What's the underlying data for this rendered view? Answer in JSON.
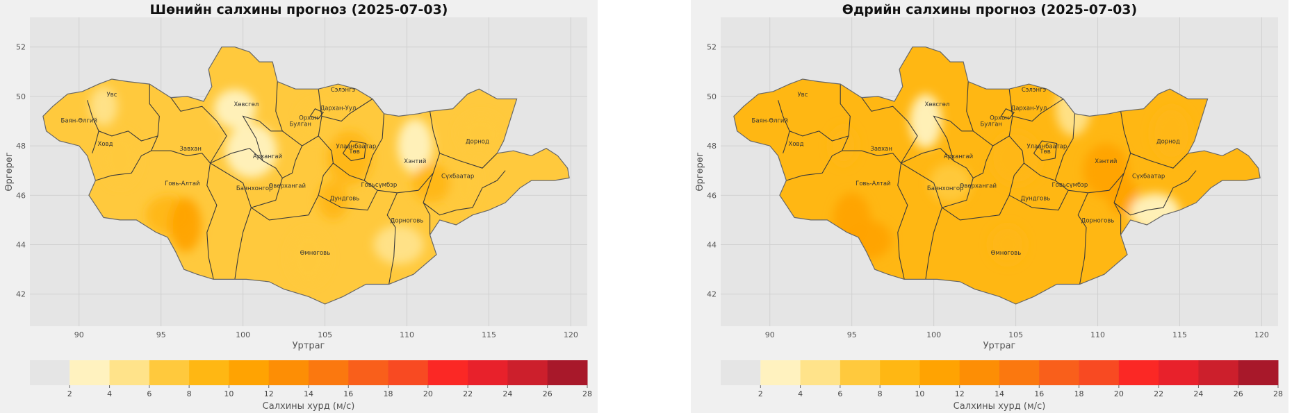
{
  "maps": [
    {
      "id": "night",
      "title": "Шөнийн салхины прогноз (2025-07-03)",
      "patches": [
        {
          "lon": 91.5,
          "lat": 49.6,
          "bin": 1
        },
        {
          "lon": 92.5,
          "lat": 47.5,
          "bin": 2
        },
        {
          "lon": 95.5,
          "lat": 45.2,
          "bin": 3
        },
        {
          "lon": 96.5,
          "lat": 44.8,
          "bin": 4
        },
        {
          "lon": 99.5,
          "lat": 49.5,
          "bin": 0
        },
        {
          "lon": 100.5,
          "lat": 47.8,
          "bin": 0
        },
        {
          "lon": 104.5,
          "lat": 49.0,
          "bin": 2
        },
        {
          "lon": 106.5,
          "lat": 47.5,
          "bin": 3
        },
        {
          "lon": 105.5,
          "lat": 45.8,
          "bin": 3
        },
        {
          "lon": 104.0,
          "lat": 43.5,
          "bin": 2
        },
        {
          "lon": 109.5,
          "lat": 44.0,
          "bin": 1
        },
        {
          "lon": 110.5,
          "lat": 48.0,
          "bin": 0
        },
        {
          "lon": 114.5,
          "lat": 48.5,
          "bin": 2
        },
        {
          "lon": 113.5,
          "lat": 46.5,
          "bin": 2
        },
        {
          "lon": 111.5,
          "lat": 46.5,
          "bin": 3
        }
      ]
    },
    {
      "id": "day",
      "title": "Өдрийн салхины прогноз (2025-07-03)",
      "patches": [
        {
          "lon": 94.5,
          "lat": 48.0,
          "bin": 3
        },
        {
          "lon": 95.0,
          "lat": 45.0,
          "bin": 4
        },
        {
          "lon": 96.0,
          "lat": 44.2,
          "bin": 4
        },
        {
          "lon": 99.5,
          "lat": 49.0,
          "bin": 0
        },
        {
          "lon": 101.0,
          "lat": 46.5,
          "bin": 2
        },
        {
          "lon": 105.0,
          "lat": 47.5,
          "bin": 3
        },
        {
          "lon": 104.5,
          "lat": 44.0,
          "bin": 3
        },
        {
          "lon": 110.5,
          "lat": 47.0,
          "bin": 4
        },
        {
          "lon": 111.5,
          "lat": 46.0,
          "bin": 4
        },
        {
          "lon": 114.5,
          "lat": 48.5,
          "bin": 3
        },
        {
          "lon": 113.5,
          "lat": 45.3,
          "bin": 0
        },
        {
          "lon": 108.5,
          "lat": 49.5,
          "bin": 1
        }
      ]
    }
  ],
  "base_bin": {
    "night": 2,
    "day": 3
  },
  "map_axes": {
    "xlabel": "Уртраг",
    "ylabel": "Өргөрөг",
    "xlim": [
      87,
      121
    ],
    "ylim": [
      40.7,
      53.2
    ],
    "xticks": [
      90,
      95,
      100,
      105,
      110,
      115,
      120
    ],
    "yticks": [
      42,
      44,
      46,
      48,
      50,
      52
    ],
    "grid": true
  },
  "provinces": [
    {
      "name": "Баян-Өлгий",
      "lon": 90.0,
      "lat": 48.95
    },
    {
      "name": "Увс",
      "lon": 92.0,
      "lat": 50.0
    },
    {
      "name": "Ховд",
      "lon": 91.6,
      "lat": 48.0
    },
    {
      "name": "Завхан",
      "lon": 96.8,
      "lat": 47.8
    },
    {
      "name": "Говь-Алтай",
      "lon": 96.3,
      "lat": 46.4
    },
    {
      "name": "Хөвсгөл",
      "lon": 100.2,
      "lat": 49.6
    },
    {
      "name": "Архангай",
      "lon": 101.5,
      "lat": 47.5
    },
    {
      "name": "Баянхонгор",
      "lon": 100.7,
      "lat": 46.2
    },
    {
      "name": "Өвөрхангай",
      "lon": 102.7,
      "lat": 46.3
    },
    {
      "name": "Булган",
      "lon": 103.5,
      "lat": 48.8
    },
    {
      "name": "Орхон",
      "lon": 104.0,
      "lat": 49.05
    },
    {
      "name": "Сэлэнгэ",
      "lon": 106.1,
      "lat": 50.2
    },
    {
      "name": "Дархан-Уул",
      "lon": 105.8,
      "lat": 49.45
    },
    {
      "name": "Улаанбаатар",
      "lon": 106.9,
      "lat": 47.9
    },
    {
      "name": "Төв",
      "lon": 106.8,
      "lat": 47.7
    },
    {
      "name": "Дундговь",
      "lon": 106.2,
      "lat": 45.8
    },
    {
      "name": "Говьсүмбэр",
      "lon": 108.3,
      "lat": 46.35
    },
    {
      "name": "Хэнтий",
      "lon": 110.5,
      "lat": 47.3
    },
    {
      "name": "Дорнод",
      "lon": 114.3,
      "lat": 48.1
    },
    {
      "name": "Сүхбаатар",
      "lon": 113.1,
      "lat": 46.7
    },
    {
      "name": "Дорноговь",
      "lon": 110.0,
      "lat": 44.9
    },
    {
      "name": "Өмнөговь",
      "lon": 104.4,
      "lat": 43.6
    }
  ],
  "colorbar": {
    "label": "Салхины хурд (м/с)",
    "ticks": [
      2,
      4,
      6,
      8,
      10,
      12,
      14,
      16,
      18,
      20,
      22,
      24,
      26,
      28
    ],
    "under_color": "#e5e5e5",
    "colors": [
      "#fff2bf",
      "#ffe38a",
      "#ffc93d",
      "#ffb713",
      "#ffa302",
      "#fd8e05",
      "#fb780f",
      "#f95f1b",
      "#f84a22",
      "#fb2825",
      "#e8212b",
      "#cc1f2c",
      "#a8182a"
    ]
  },
  "outline_color": "#3a3a3a"
}
